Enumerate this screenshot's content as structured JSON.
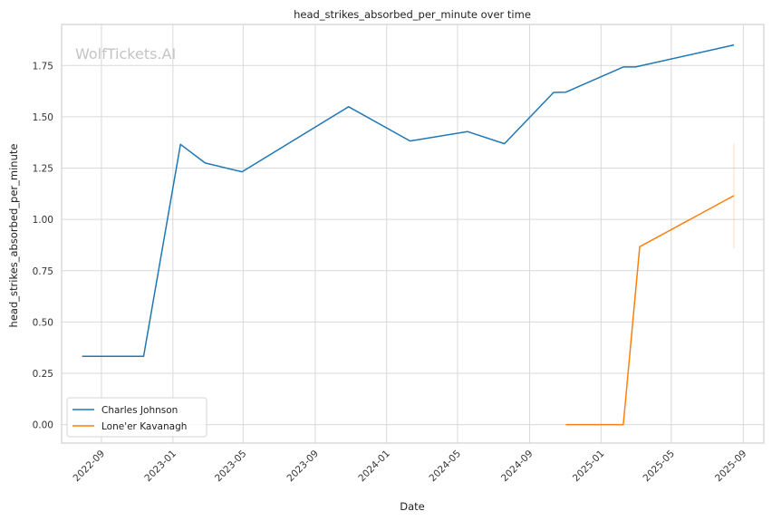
{
  "chart_data": {
    "type": "line",
    "title": "head_strikes_absorbed_per_minute over time",
    "xlabel": "Date",
    "ylabel": "head_strikes_absorbed_per_minute",
    "watermark": "WolfTickets.AI",
    "xlim": [
      "2022-06-25",
      "2025-10-06"
    ],
    "ylim": [
      -0.09,
      1.95
    ],
    "x_ticks": [
      "2022-09",
      "2023-01",
      "2023-05",
      "2023-09",
      "2024-01",
      "2024-05",
      "2024-09",
      "2025-01",
      "2025-05",
      "2025-09"
    ],
    "x_tick_dates": [
      "2022-09-01",
      "2023-01-01",
      "2023-05-01",
      "2023-09-01",
      "2024-01-01",
      "2024-05-01",
      "2024-09-01",
      "2025-01-01",
      "2025-05-01",
      "2025-09-01"
    ],
    "y_ticks": [
      "0.00",
      "0.25",
      "0.50",
      "0.75",
      "1.00",
      "1.25",
      "1.50",
      "1.75"
    ],
    "grid": true,
    "legend_position": "lower-left",
    "series": [
      {
        "name": "Charles Johnson",
        "color": "#1f77b4",
        "points": [
          {
            "x": "2022-07-30",
            "y": 0.333
          },
          {
            "x": "2022-11-12",
            "y": 0.333
          },
          {
            "x": "2023-01-14",
            "y": 1.366
          },
          {
            "x": "2023-02-25",
            "y": 1.275
          },
          {
            "x": "2023-04-29",
            "y": 1.232
          },
          {
            "x": "2023-10-28",
            "y": 1.549
          },
          {
            "x": "2024-02-10",
            "y": 1.382
          },
          {
            "x": "2024-05-18",
            "y": 1.428
          },
          {
            "x": "2024-07-20",
            "y": 1.369
          },
          {
            "x": "2024-10-12",
            "y": 1.619
          },
          {
            "x": "2024-11-02",
            "y": 1.62
          },
          {
            "x": "2025-02-08",
            "y": 1.743
          },
          {
            "x": "2025-03-01",
            "y": 1.743
          },
          {
            "x": "2025-08-16",
            "y": 1.85
          }
        ]
      },
      {
        "name": "Lone'er Kavanagh",
        "color": "#ff7f0e",
        "points": [
          {
            "x": "2024-11-02",
            "y": 0.0
          },
          {
            "x": "2025-02-08",
            "y": 0.0
          },
          {
            "x": "2025-03-08",
            "y": 0.867
          },
          {
            "x": "2025-08-16",
            "y": 1.116
          }
        ],
        "error_bars": [
          {
            "x": "2025-08-16",
            "low": 0.86,
            "high": 1.37
          }
        ]
      }
    ]
  }
}
